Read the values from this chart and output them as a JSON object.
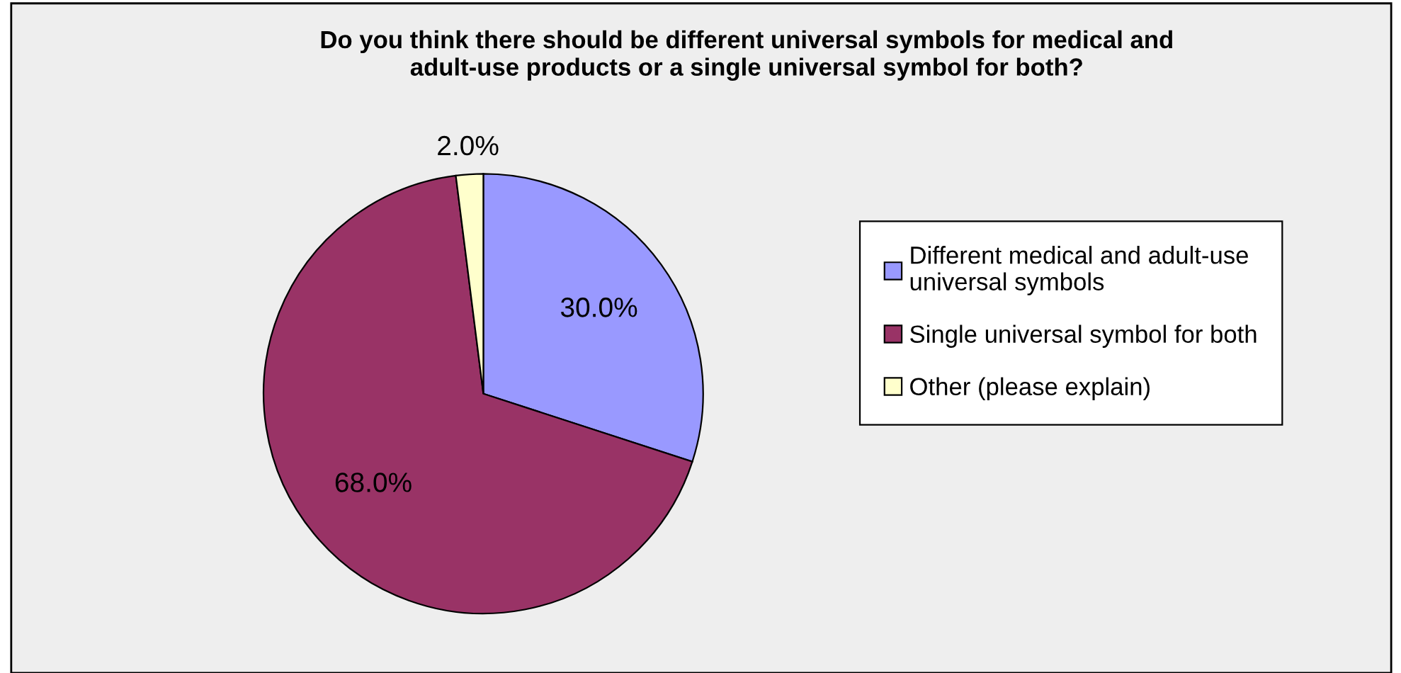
{
  "chart_data": {
    "type": "pie",
    "title": "Do you think there should be different universal symbols for medical and\nadult-use products or a single universal symbol for both?",
    "categories": [
      "Different medical and adult-use\nuniversal symbols",
      "Single universal symbol for both",
      "Other (please explain)"
    ],
    "values": [
      30.0,
      68.0,
      2.0
    ],
    "colors": [
      "#9999ff",
      "#993366",
      "#ffffcc"
    ],
    "value_labels": [
      "30.0%",
      "68.0%",
      "2.0%"
    ],
    "legend": "right"
  }
}
